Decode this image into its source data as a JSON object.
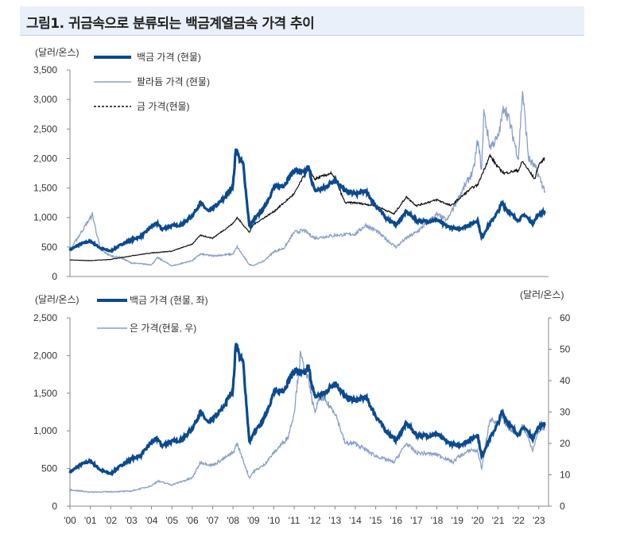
{
  "title": "그림1. 귀금속으로 분류되는 백금계열금속 가격 추이",
  "colors": {
    "platinum": "#0b4a8f",
    "palladium": "#8a9fc9",
    "gold": "#111111",
    "silver": "#8a9fc9"
  },
  "chart_data": [
    {
      "type": "line",
      "yunit": "(달러/온스)",
      "ylim": [
        0,
        3500
      ],
      "yticks": [
        "0",
        "500",
        "1,000",
        "1,500",
        "2,000",
        "2,500",
        "3,000",
        "3,500"
      ],
      "series": [
        {
          "name": "백금 가격 (현물)",
          "x": [
            2000,
            2000.5,
            2001,
            2001.5,
            2002,
            2002.5,
            2003,
            2003.5,
            2004,
            2004.3,
            2004.5,
            2005,
            2005.5,
            2006,
            2006.4,
            2006.8,
            2007,
            2007.5,
            2008,
            2008.15,
            2008.3,
            2008.5,
            2008.8,
            2009,
            2009.5,
            2010,
            2010.5,
            2011,
            2011.5,
            2011.7,
            2012,
            2012.5,
            2013,
            2013.5,
            2014,
            2014.5,
            2015,
            2015.5,
            2016,
            2016.5,
            2017,
            2017.5,
            2018,
            2018.5,
            2019,
            2019.5,
            2020,
            2020.2,
            2020.5,
            2021,
            2021.2,
            2021.5,
            2022,
            2022.3,
            2022.7,
            2023,
            2023.3
          ],
          "y": [
            450,
            550,
            600,
            480,
            430,
            540,
            620,
            680,
            850,
            900,
            800,
            860,
            880,
            1030,
            1250,
            1100,
            1150,
            1300,
            1550,
            2200,
            2000,
            1900,
            850,
            950,
            1150,
            1500,
            1550,
            1800,
            1750,
            1850,
            1450,
            1500,
            1650,
            1450,
            1400,
            1450,
            1200,
            1000,
            870,
            1100,
            950,
            930,
            960,
            850,
            800,
            860,
            950,
            650,
            850,
            1100,
            1250,
            1100,
            950,
            1050,
            900,
            1050,
            1100
          ]
        },
        {
          "name": "팔라듐 가격 (현물)",
          "x": [
            2000,
            2001.1,
            2001.5,
            2002,
            2002.5,
            2003,
            2004,
            2004.3,
            2005,
            2006,
            2006.4,
            2007,
            2008,
            2008.2,
            2008.8,
            2009,
            2009.5,
            2010,
            2010.5,
            2011,
            2011.5,
            2012,
            2013,
            2014,
            2014.5,
            2015,
            2015.8,
            2016,
            2016.5,
            2017,
            2017.8,
            2018,
            2018.5,
            2019,
            2019.8,
            2020,
            2020.2,
            2020.3,
            2020.6,
            2021,
            2021.3,
            2021.5,
            2022,
            2022.2,
            2022.5,
            2022.9,
            2023,
            2023.3
          ],
          "y": [
            450,
            1050,
            450,
            350,
            320,
            230,
            200,
            320,
            180,
            270,
            380,
            350,
            380,
            500,
            200,
            190,
            260,
            420,
            480,
            750,
            780,
            650,
            700,
            720,
            870,
            780,
            550,
            500,
            650,
            750,
            1000,
            1050,
            950,
            1300,
            1800,
            2300,
            1800,
            2800,
            2200,
            2350,
            2900,
            2700,
            2000,
            3150,
            2000,
            1800,
            1700,
            1450
          ]
        },
        {
          "name": "금 가격(현물)",
          "dash": true,
          "x": [
            2000,
            2001,
            2002,
            2003,
            2004,
            2005,
            2006,
            2006.4,
            2007,
            2008,
            2008.2,
            2008.8,
            2009,
            2010,
            2011,
            2011.7,
            2012,
            2012.8,
            2013,
            2013.5,
            2014,
            2015,
            2015.9,
            2016.5,
            2017,
            2018,
            2018.7,
            2019,
            2019.7,
            2020,
            2020.6,
            2021,
            2021.3,
            2022,
            2022.2,
            2022.8,
            2023,
            2023.3
          ],
          "y": [
            280,
            270,
            290,
            350,
            400,
            430,
            550,
            700,
            650,
            900,
            1000,
            750,
            880,
            1100,
            1400,
            1850,
            1650,
            1750,
            1650,
            1250,
            1250,
            1200,
            1060,
            1350,
            1200,
            1300,
            1200,
            1290,
            1500,
            1550,
            2050,
            1850,
            1750,
            1800,
            1950,
            1650,
            1900,
            2000
          ]
        }
      ]
    },
    {
      "type": "line",
      "yunit": "(달러/온스)",
      "y2unit": "(달러/온스)",
      "ylim": [
        0,
        2500
      ],
      "y2lim": [
        0,
        60
      ],
      "yticks": [
        "0",
        "500",
        "1,000",
        "1,500",
        "2,000",
        "2,500"
      ],
      "y2ticks": [
        "0",
        "10",
        "20",
        "30",
        "40",
        "50",
        "60"
      ],
      "xticks": [
        "'00",
        "'01",
        "'02",
        "'03",
        "'04",
        "'05",
        "'06",
        "'07",
        "'08",
        "'09",
        "'10",
        "'11",
        "'12",
        "'13",
        "'14",
        "'15",
        "'16",
        "'17",
        "'18",
        "'19",
        "'20",
        "'21",
        "'22",
        "'23"
      ],
      "series": [
        {
          "name": "백금 가격 (현물, 좌)",
          "axis": "left",
          "ref": 0
        },
        {
          "name": "은 가격(현물, 우)",
          "axis": "right",
          "x": [
            2000,
            2001,
            2002,
            2003,
            2004,
            2004.3,
            2005,
            2006,
            2006.4,
            2007,
            2008,
            2008.2,
            2008.8,
            2009,
            2009.5,
            2010,
            2010.7,
            2011,
            2011.3,
            2011.7,
            2012,
            2012.3,
            2013,
            2013.5,
            2014,
            2015,
            2015.9,
            2016.5,
            2017,
            2018,
            2018.8,
            2019,
            2019.7,
            2020,
            2020.2,
            2020.6,
            2021,
            2021.1,
            2021.5,
            2022,
            2022.2,
            2022.7,
            2023,
            2023.3
          ],
          "y": [
            5.2,
            4.5,
            4.6,
            4.8,
            6.5,
            8,
            6.8,
            9,
            14,
            13,
            17,
            20,
            9,
            11,
            13,
            17,
            22,
            30,
            48,
            40,
            30,
            35,
            30,
            20,
            20,
            16,
            14,
            20,
            17,
            16.5,
            14,
            15.5,
            18,
            17.5,
            12,
            28,
            26,
            29,
            25,
            23,
            26,
            18,
            24,
            25
          ]
        }
      ]
    }
  ]
}
